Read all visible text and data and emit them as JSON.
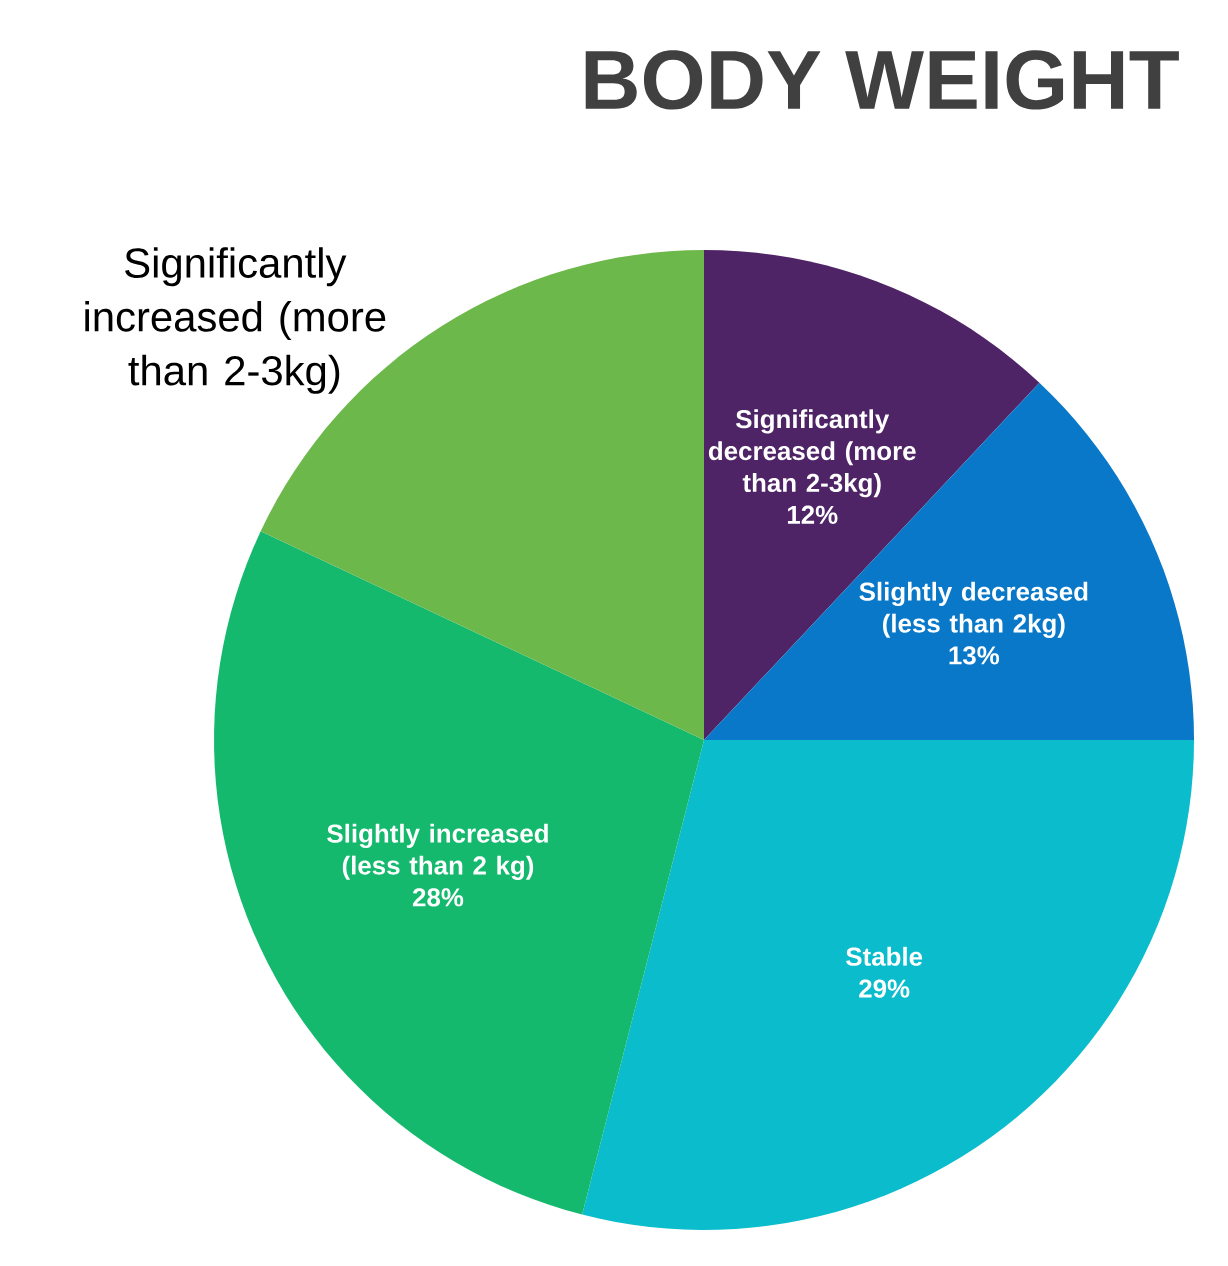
{
  "chart_data": {
    "type": "pie",
    "title": "BODY WEIGHT",
    "categories": [
      "Significantly decreased (more than 2-3kg)",
      "Slightly decreased (less than 2kg)",
      "Stable",
      "Slightly increased (less than 2 kg)",
      "Significantly increased (more than 2-3kg)"
    ],
    "values": [
      12,
      13,
      29,
      28,
      18
    ],
    "value_labels": [
      "12%",
      "13%",
      "29%",
      "28%",
      null
    ],
    "colors": [
      "#4e2466",
      "#0a78c8",
      "#0abccc",
      "#14b96e",
      "#6cb84a"
    ]
  }
}
